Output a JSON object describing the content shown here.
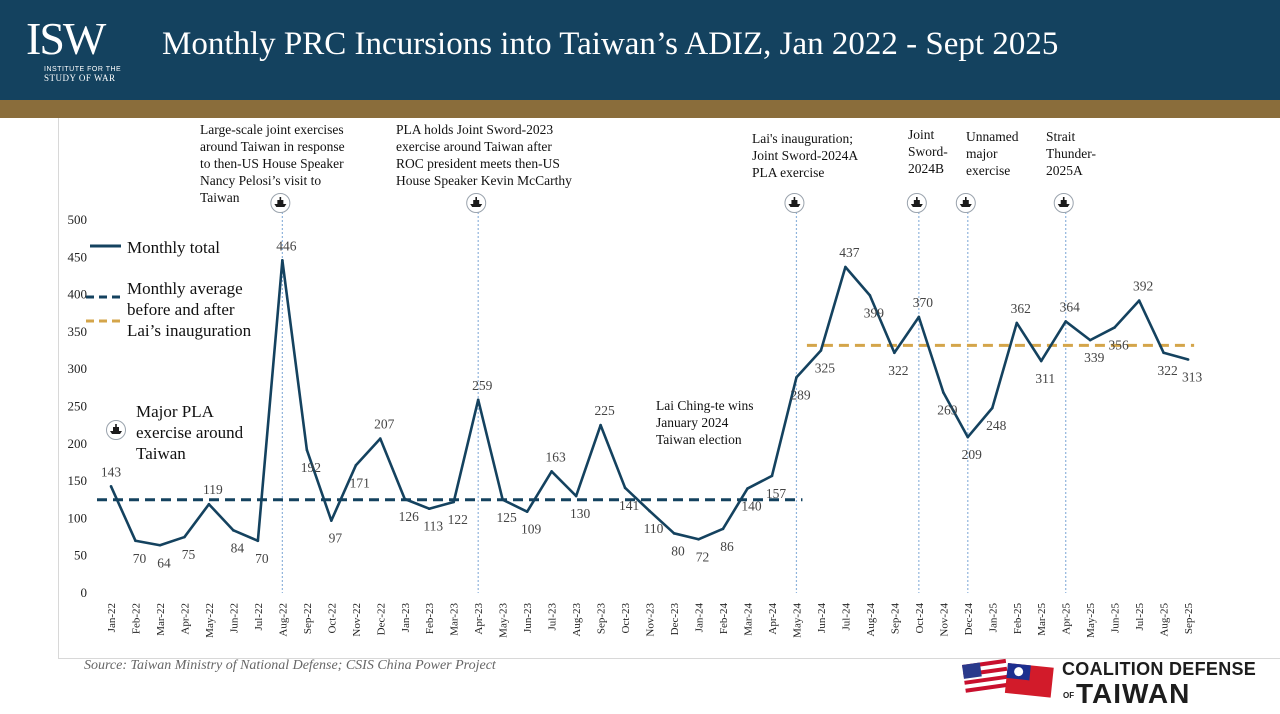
{
  "header": {
    "logo": {
      "mark": "ISW",
      "subtitle_small": "INSTITUTE FOR THE",
      "subtitle": "STUDY OF WAR"
    },
    "title": "Monthly PRC Incursions into Taiwan’s ADIZ, Jan 2022 - Sept 2025",
    "background_color": "#14425f",
    "rule_color": "#8a6d3b"
  },
  "chart_data": {
    "type": "line",
    "categories": [
      "Jan-22",
      "Feb-22",
      "Mar-22",
      "Apr-22",
      "May-22",
      "Jun-22",
      "Jul-22",
      "Aug-22",
      "Sep-22",
      "Oct-22",
      "Nov-22",
      "Dec-22",
      "Jan-23",
      "Feb-23",
      "Mar-23",
      "Apr-23",
      "May-23",
      "Jun-23",
      "Jul-23",
      "Aug-23",
      "Sep-23",
      "Oct-23",
      "Nov-23",
      "Dec-23",
      "Jan-24",
      "Feb-24",
      "Mar-24",
      "Apr-24",
      "May-24",
      "Jun-24",
      "Jul-24",
      "Aug-24",
      "Sep-24",
      "Oct-24",
      "Nov-24",
      "Dec-24",
      "Jan-25",
      "Feb-25",
      "Mar-25",
      "Apr-25",
      "May-25",
      "Jun-25",
      "Jul-25",
      "Aug-25",
      "Sep-25"
    ],
    "series": [
      {
        "name": "Monthly total",
        "color": "#14425f",
        "values": [
          143,
          70,
          64,
          75,
          119,
          84,
          70,
          446,
          192,
          97,
          171,
          207,
          126,
          113,
          122,
          259,
          125,
          109,
          163,
          130,
          225,
          141,
          110,
          80,
          72,
          86,
          140,
          157,
          289,
          325,
          437,
          399,
          322,
          370,
          269,
          209,
          248,
          362,
          311,
          364,
          339,
          356,
          392,
          322,
          313
        ]
      }
    ],
    "averages": [
      {
        "name": "Monthly average before Lai’s inauguration",
        "value": 125,
        "start": "Jan-22",
        "end": "May-24",
        "color": "#14425f"
      },
      {
        "name": "Monthly average after Lai’s inauguration",
        "value": 332,
        "start": "Jun-24",
        "end": "Sep-25",
        "color": "#d4a54a"
      }
    ],
    "ylim": [
      0,
      500
    ],
    "yticks": [
      "0",
      "50",
      "100",
      "150",
      "200",
      "250",
      "300",
      "350",
      "400",
      "450",
      "500"
    ],
    "events": [
      {
        "month": "Aug-22",
        "text": "Large-scale joint exercises\naround Taiwan in response\nto then-US House Speaker\nNancy Pelosi’s  visit to\nTaiwan"
      },
      {
        "month": "Apr-23",
        "text": "PLA holds Joint Sword-2023\nexercise  around Taiwan after\nROC president  meets then-US\nHouse Speaker  Kevin McCarthy"
      },
      {
        "month": "May-24",
        "text": "Lai's inauguration;\nJoint Sword-2024A\nPLA exercise"
      },
      {
        "month": "Oct-24",
        "text": "Joint\nSword-\n2024B"
      },
      {
        "month": "Dec-24",
        "text": "Unnamed\nmajor\nexercise"
      },
      {
        "month": "Apr-25",
        "text": "Strait\nThunder-\n2025A"
      }
    ],
    "election_note": "Lai Ching-te wins\nJanuary 2024\nTaiwan election",
    "legend": {
      "monthly_total": "Monthly total",
      "average": "Monthly average\nbefore and after\nLai’s inauguration",
      "exercise": "Major PLA\nexercise around\nTaiwan"
    }
  },
  "footer": {
    "source": "Source: Taiwan Ministry of National Defense; CSIS China Power Project",
    "partner_line1": "COALITION DEFENSE",
    "partner_of": "OF",
    "partner_line2": "TAIWAN"
  }
}
